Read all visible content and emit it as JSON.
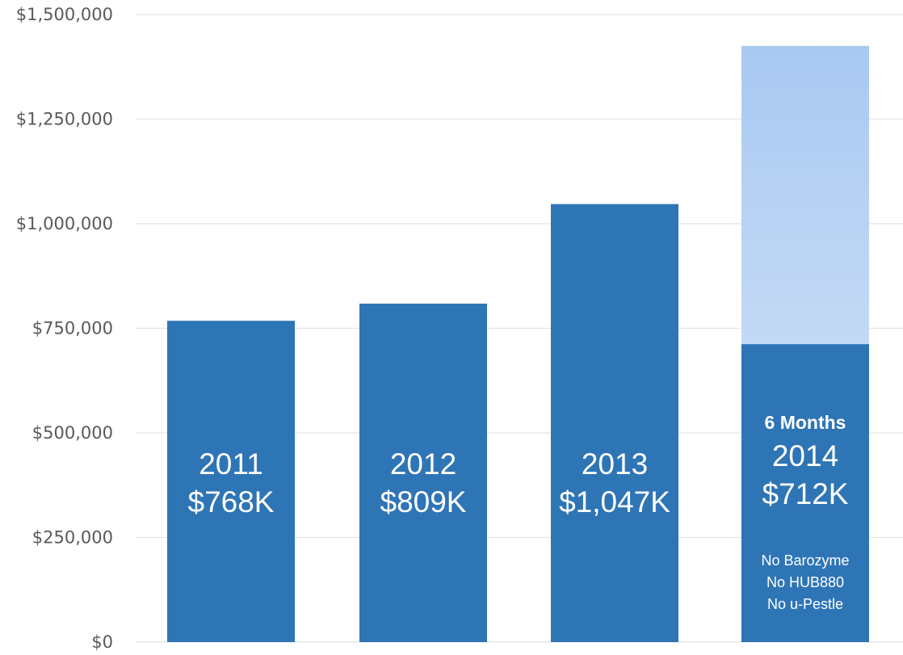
{
  "chart_data": {
    "type": "bar",
    "categories": [
      "2011",
      "2012",
      "2013",
      "2014"
    ],
    "values": [
      768000,
      809000,
      1047000,
      712000
    ],
    "projection": {
      "category": "2014",
      "value": 1425000
    },
    "ylim": [
      0,
      1500000
    ],
    "yticks": [
      {
        "value": 0,
        "label": "$0"
      },
      {
        "value": 250000,
        "label": "$250,000"
      },
      {
        "value": 500000,
        "label": "$500,000"
      },
      {
        "value": 750000,
        "label": "$750,000"
      },
      {
        "value": 1000000,
        "label": "$1,000,000"
      },
      {
        "value": 1250000,
        "label": "$1,250,000"
      },
      {
        "value": 1500000,
        "label": "$1,500,000"
      }
    ],
    "bar_labels": [
      {
        "lines": [
          "2011",
          "$768K"
        ]
      },
      {
        "lines": [
          "2012",
          "$809K"
        ]
      },
      {
        "lines": [
          "2013",
          "$1,047K"
        ]
      },
      {
        "header": "6 Months",
        "lines": [
          "2014",
          "$712K"
        ],
        "notes": [
          "No Barozyme",
          "No HUB880",
          "No u-Pestle"
        ]
      }
    ],
    "grid": true,
    "legend": "none",
    "colors": {
      "bar": "#2e75b6",
      "projection_top": "#a9c9f2",
      "projection_bottom": "#dde9f8",
      "grid": "#e4e4e4",
      "tick_text": "#595959"
    }
  }
}
